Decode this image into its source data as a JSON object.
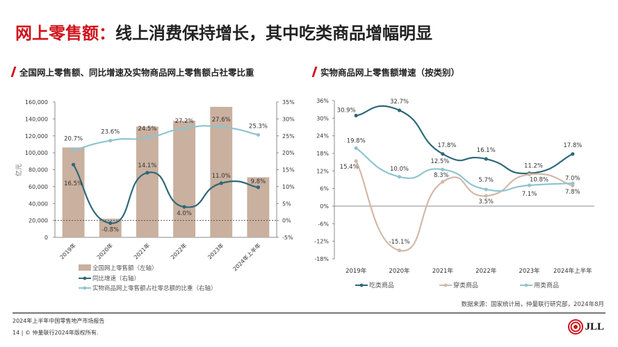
{
  "header": {
    "title_red": "网上零售额：",
    "title_rest": "线上消费保持增长，其中吃类商品增幅明显"
  },
  "colors": {
    "accent": "#d0121b",
    "bar": "#c9b09f",
    "dark": "#2e6878",
    "light": "#8fc4cf",
    "tan": "#d3b8a8"
  },
  "chart_data": [
    {
      "type": "bar+line",
      "title": "全国网上零售额、同比增速及实物商品网上零售额占社零比重",
      "ylabel": "亿元",
      "categories": [
        "2019年",
        "2020年",
        "2021年",
        "2022年",
        "2023年",
        "2024年上半年"
      ],
      "left_axis": {
        "ylim": [
          0,
          160000
        ],
        "ticks": [
          "0",
          "20,000",
          "40,000",
          "60,000",
          "80,000",
          "100,000",
          "120,000",
          "140,000",
          "160,000"
        ]
      },
      "right_axis": {
        "ylim": [
          -5,
          35
        ],
        "ticks": [
          "-5%",
          "0%",
          "5%",
          "10%",
          "15%",
          "20%",
          "25%",
          "30%",
          "35%"
        ]
      },
      "series": [
        {
          "name": "全国网上零售额（左轴）",
          "type": "bar",
          "axis": "left",
          "values": [
            106300,
            22000,
            130900,
            137900,
            154300,
            71000
          ]
        },
        {
          "name": "同比增速（右轴）",
          "type": "line",
          "axis": "right",
          "values": [
            16.5,
            -0.8,
            14.1,
            4.0,
            11.0,
            9.8
          ],
          "labels": [
            "16.5%",
            "-0.8%",
            "14.1%",
            "4.0%",
            "11.0%",
            "9.8%"
          ]
        },
        {
          "name": "实物商品网上零售额占社零总额的比重（右轴）",
          "type": "line",
          "axis": "right",
          "values": [
            20.7,
            23.6,
            24.5,
            27.2,
            27.6,
            25.3
          ],
          "labels": [
            "20.7%",
            "23.6%",
            "24.5%",
            "27.2%",
            "27.6%",
            "25.3%"
          ]
        }
      ],
      "reference_line": 0
    },
    {
      "type": "line",
      "title": "实物商品网上零售额增速（按类别）",
      "categories": [
        "2019年",
        "2020年",
        "2021年",
        "2022年",
        "2023年",
        "2024年上半年"
      ],
      "ylim": [
        -18,
        36
      ],
      "ticks": [
        "-18%",
        "-12%",
        "-6%",
        "0%",
        "6%",
        "12%",
        "18%",
        "24%",
        "30%",
        "36%"
      ],
      "legend": "bottom",
      "series": [
        {
          "name": "吃类商品",
          "values": [
            30.9,
            32.7,
            17.8,
            16.1,
            11.2,
            17.8
          ],
          "labels": [
            "30.9%",
            "32.7%",
            "17.8%",
            "16.1%",
            "11.2%",
            "17.8%"
          ]
        },
        {
          "name": "穿类商品",
          "values": [
            15.4,
            -15.1,
            8.3,
            3.5,
            10.8,
            7.0
          ],
          "labels": [
            "15.4%",
            "-15.1%",
            "8.3%",
            "3.5%",
            "10.8%",
            "7.0%"
          ]
        },
        {
          "name": "用类商品",
          "values": [
            19.8,
            10.0,
            12.5,
            5.7,
            7.1,
            7.8
          ],
          "labels": [
            "19.8%",
            "10.0%",
            "12.5%",
            "5.7%",
            "7.1%",
            "7.8%"
          ]
        }
      ]
    }
  ],
  "footer": {
    "source": "数据来源：国家统计局，仲量联行研究部，2024年8月",
    "report": "2024年上半年中国零售地产市场报告",
    "copyright": "14 | © 仲量联行2024年版权所有.",
    "logo": "JLL"
  }
}
